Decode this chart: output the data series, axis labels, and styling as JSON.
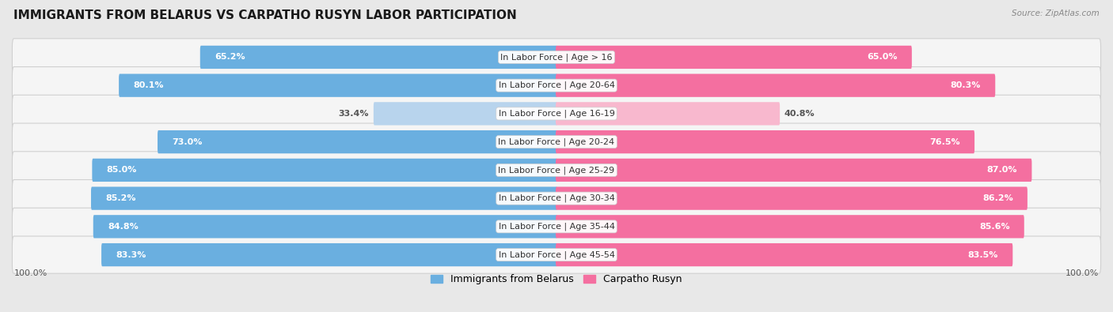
{
  "title": "IMMIGRANTS FROM BELARUS VS CARPATHO RUSYN LABOR PARTICIPATION",
  "source": "Source: ZipAtlas.com",
  "categories": [
    "In Labor Force | Age > 16",
    "In Labor Force | Age 20-64",
    "In Labor Force | Age 16-19",
    "In Labor Force | Age 20-24",
    "In Labor Force | Age 25-29",
    "In Labor Force | Age 30-34",
    "In Labor Force | Age 35-44",
    "In Labor Force | Age 45-54"
  ],
  "belarus_values": [
    65.2,
    80.1,
    33.4,
    73.0,
    85.0,
    85.2,
    84.8,
    83.3
  ],
  "rusyn_values": [
    65.0,
    80.3,
    40.8,
    76.5,
    87.0,
    86.2,
    85.6,
    83.5
  ],
  "belarus_color": "#6aafe0",
  "belarus_color_light": "#b8d4ed",
  "rusyn_color": "#f46fa0",
  "rusyn_color_light": "#f8b8ce",
  "max_value": 100.0,
  "background_color": "#e8e8e8",
  "row_bg_color": "#f0f0f0",
  "title_fontsize": 11,
  "label_fontsize": 8,
  "value_fontsize": 8,
  "legend_fontsize": 9
}
